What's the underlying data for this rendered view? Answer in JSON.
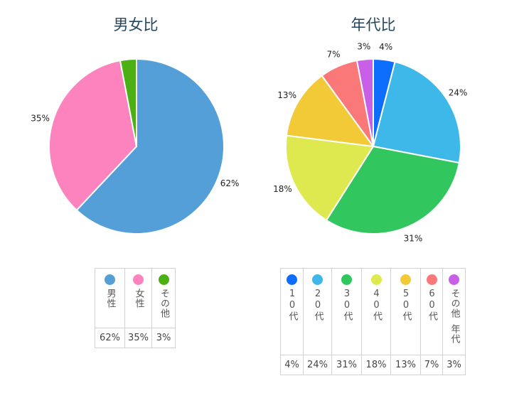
{
  "chart_data": [
    {
      "type": "pie",
      "title": "男女比",
      "categories": [
        "男性",
        "女性",
        "その他"
      ],
      "values": [
        62,
        35,
        3
      ],
      "labels": [
        "62%",
        "35%",
        "3%"
      ],
      "colors": [
        "#549fd8",
        "#fd83be",
        "#4caf14"
      ],
      "legend": {
        "placement": "bottom",
        "label_lines": [
          [
            "男性"
          ],
          [
            "女性"
          ],
          [
            "その他"
          ]
        ]
      }
    },
    {
      "type": "pie",
      "title": "年代比",
      "categories": [
        "10代",
        "20代",
        "30代",
        "40代",
        "50代",
        "60代",
        "その他年代"
      ],
      "values": [
        4,
        24,
        31,
        18,
        13,
        7,
        3
      ],
      "labels": [
        "4%",
        "24%",
        "31%",
        "18%",
        "13%",
        "7%",
        "3%"
      ],
      "colors": [
        "#0d6efe",
        "#3db8e8",
        "#31c75e",
        "#dee94f",
        "#f2c936",
        "#fb7878",
        "#c95fe6"
      ],
      "legend": {
        "placement": "bottom",
        "label_lines": [
          [
            "10代"
          ],
          [
            "20代"
          ],
          [
            "30代"
          ],
          [
            "40代"
          ],
          [
            "50代"
          ],
          [
            "60代"
          ],
          [
            "その他",
            "年代"
          ]
        ]
      }
    }
  ]
}
